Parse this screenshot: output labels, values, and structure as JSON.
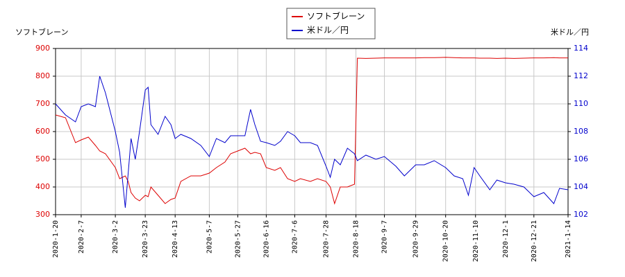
{
  "chart_data": {
    "type": "line",
    "y_label": "ソフトブレーン",
    "y2_label": "米ドル／円",
    "x": [
      "2020-1-20",
      "2020-1-27",
      "2020-2-3",
      "2020-2-7",
      "2020-2-12",
      "2020-2-17",
      "2020-2-20",
      "2020-2-24",
      "2020-3-2",
      "2020-3-5",
      "2020-3-9",
      "2020-3-11",
      "2020-3-13",
      "2020-3-16",
      "2020-3-19",
      "2020-3-23",
      "2020-3-25",
      "2020-3-27",
      "2020-4-1",
      "2020-4-6",
      "2020-4-10",
      "2020-4-13",
      "2020-4-17",
      "2020-4-24",
      "2020-5-1",
      "2020-5-7",
      "2020-5-12",
      "2020-5-18",
      "2020-5-22",
      "2020-5-27",
      "2020-6-1",
      "2020-6-5",
      "2020-6-8",
      "2020-6-12",
      "2020-6-16",
      "2020-6-22",
      "2020-6-26",
      "2020-7-1",
      "2020-7-6",
      "2020-7-10",
      "2020-7-17",
      "2020-7-22",
      "2020-7-28",
      "2020-7-31",
      "2020-8-3",
      "2020-8-7",
      "2020-8-12",
      "2020-8-17",
      "2020-8-19",
      "2020-8-25",
      "2020-9-1",
      "2020-9-7",
      "2020-9-15",
      "2020-9-21",
      "2020-9-29",
      "2020-10-5",
      "2020-10-12",
      "2020-10-20",
      "2020-10-26",
      "2020-11-1",
      "2020-11-5",
      "2020-11-9",
      "2020-11-13",
      "2020-11-20",
      "2020-11-25",
      "2020-12-1",
      "2020-12-7",
      "2020-12-14",
      "2020-12-21",
      "2020-12-28",
      "2021-1-4",
      "2021-1-8",
      "2021-1-14"
    ],
    "series": [
      {
        "name": "ソフトブレーン",
        "color": "#dd0000",
        "axis": "y",
        "values": [
          660,
          650,
          560,
          570,
          580,
          550,
          530,
          520,
          470,
          430,
          440,
          420,
          380,
          360,
          350,
          370,
          365,
          400,
          370,
          340,
          355,
          360,
          420,
          440,
          440,
          450,
          470,
          490,
          520,
          530,
          540,
          520,
          525,
          520,
          470,
          460,
          470,
          430,
          420,
          430,
          420,
          430,
          420,
          400,
          340,
          400,
          400,
          410,
          865,
          864,
          865,
          866,
          866,
          866,
          866,
          867,
          867,
          868,
          867,
          866,
          866,
          866,
          865,
          865,
          864,
          865,
          864,
          865,
          866,
          866,
          867,
          866,
          866
        ]
      },
      {
        "name": "米ドル／円",
        "color": "#0000cc",
        "axis": "y2",
        "values": [
          110,
          109.2,
          108.7,
          109.8,
          110,
          109.8,
          112,
          110.8,
          108,
          106.5,
          102.5,
          105,
          107.5,
          106,
          108,
          111,
          111.2,
          108.5,
          107.8,
          109.1,
          108.5,
          107.5,
          107.8,
          107.5,
          107,
          106.2,
          107.5,
          107.2,
          107.7,
          107.7,
          107.7,
          109.6,
          108.5,
          107.3,
          107.2,
          107,
          107.3,
          108,
          107.7,
          107.2,
          107.2,
          107,
          105.5,
          104.7,
          106,
          105.6,
          106.8,
          106.4,
          105.9,
          106.3,
          106,
          106.2,
          105.5,
          104.8,
          105.6,
          105.6,
          105.9,
          105.4,
          104.8,
          104.6,
          103.4,
          105.4,
          104.8,
          103.8,
          104.5,
          104.3,
          104.2,
          104,
          103.3,
          103.6,
          102.8,
          103.9,
          103.8
        ]
      }
    ],
    "xlim": [
      "2020-1-20",
      "2021-1-14"
    ],
    "xticks": [
      "2020-1-20",
      "2020-2-7",
      "2020-3-2",
      "2020-3-23",
      "2020-4-13",
      "2020-5-7",
      "2020-5-27",
      "2020-6-16",
      "2020-7-6",
      "2020-7-28",
      "2020-8-18",
      "2020-9-7",
      "2020-9-29",
      "2020-10-20",
      "2020-11-10",
      "2020-12-1",
      "2020-12-21",
      "2021-1-14"
    ],
    "ylim": [
      300,
      900
    ],
    "yticks": [
      300,
      400,
      500,
      600,
      700,
      800,
      900
    ],
    "y2lim": [
      102,
      114
    ],
    "y2ticks": [
      102,
      104,
      106,
      108,
      110,
      112,
      114
    ],
    "grid": true
  }
}
